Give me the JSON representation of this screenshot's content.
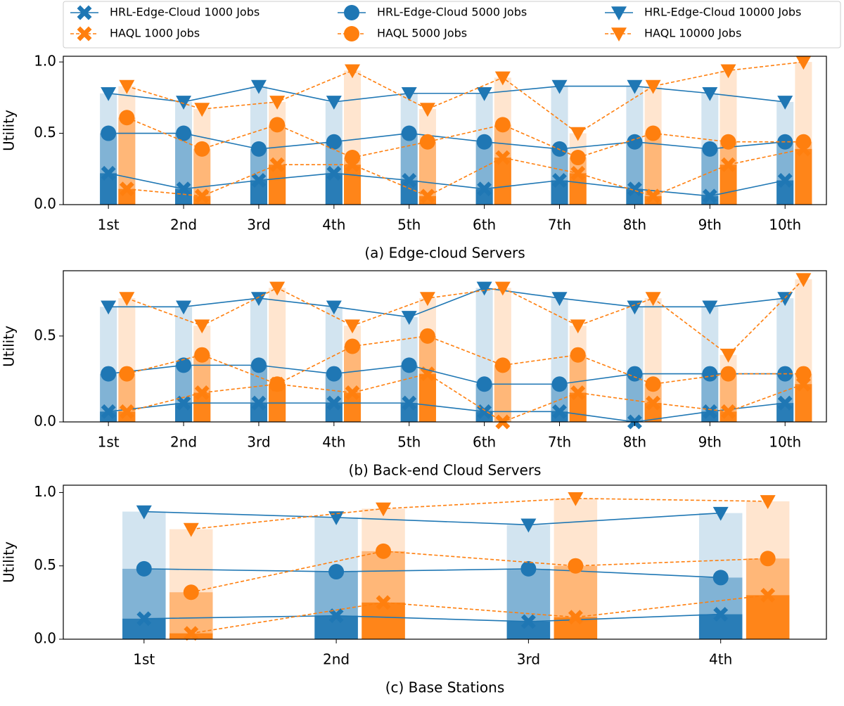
{
  "chart_data": [
    {
      "type": "bar-line",
      "xlabel": "(a) Edge-cloud Servers",
      "ylabel": "Utility",
      "categories": [
        "1st",
        "2nd",
        "3rd",
        "4th",
        "5th",
        "6th",
        "7th",
        "8th",
        "9th",
        "10th"
      ],
      "ylim": [
        0,
        1.04
      ],
      "yticks": [
        {
          "value": 0,
          "label": "0.0"
        },
        {
          "value": 0.5,
          "label": "0.5"
        },
        {
          "value": 1.0,
          "label": "1.0"
        }
      ],
      "series": [
        {
          "name": "HRL-Edge-Cloud 1000 Jobs",
          "color": "#1f77b4",
          "marker": "x",
          "dashed": false,
          "values": [
            0.22,
            0.11,
            0.17,
            0.22,
            0.17,
            0.11,
            0.17,
            0.11,
            0.06,
            0.17
          ]
        },
        {
          "name": "HAQL 1000 Jobs",
          "color": "#ff7f0e",
          "marker": "x",
          "dashed": true,
          "values": [
            0.11,
            0.06,
            0.28,
            0.28,
            0.06,
            0.33,
            0.22,
            0.06,
            0.28,
            0.39
          ]
        },
        {
          "name": "HRL-Edge-Cloud 5000 Jobs",
          "color": "#1f77b4",
          "marker": "o",
          "dashed": false,
          "values": [
            0.5,
            0.5,
            0.39,
            0.44,
            0.5,
            0.44,
            0.39,
            0.44,
            0.39,
            0.44
          ]
        },
        {
          "name": "HAQL 5000 Jobs",
          "color": "#ff7f0e",
          "marker": "o",
          "dashed": true,
          "values": [
            0.61,
            0.39,
            0.56,
            0.33,
            0.44,
            0.56,
            0.33,
            0.5,
            0.44,
            0.44
          ]
        },
        {
          "name": "HRL-Edge-Cloud 10000 Jobs",
          "color": "#1f77b4",
          "marker": "v",
          "dashed": false,
          "values": [
            0.78,
            0.72,
            0.83,
            0.72,
            0.78,
            0.78,
            0.83,
            0.83,
            0.78,
            0.72
          ]
        },
        {
          "name": "HAQL 10000 Jobs",
          "color": "#ff7f0e",
          "marker": "v",
          "dashed": true,
          "values": [
            0.83,
            0.67,
            0.72,
            0.94,
            0.67,
            0.89,
            0.5,
            0.83,
            0.94,
            1.0
          ]
        }
      ]
    },
    {
      "type": "bar-line",
      "xlabel": "(b) Back-end Cloud Servers",
      "ylabel": "Utility",
      "categories": [
        "1st",
        "2nd",
        "3rd",
        "4th",
        "5th",
        "6th",
        "7th",
        "8th",
        "9th",
        "10th"
      ],
      "ylim": [
        0,
        0.88
      ],
      "yticks": [
        {
          "value": 0,
          "label": "0.0"
        },
        {
          "value": 0.5,
          "label": "0.5"
        }
      ],
      "series": [
        {
          "color": "#1f77b4",
          "marker": "x",
          "dashed": false,
          "values": [
            0.06,
            0.11,
            0.11,
            0.11,
            0.11,
            0.06,
            0.06,
            0.0,
            0.06,
            0.11
          ]
        },
        {
          "color": "#ff7f0e",
          "marker": "x",
          "dashed": true,
          "values": [
            0.06,
            0.17,
            0.22,
            0.17,
            0.28,
            0.0,
            0.17,
            0.11,
            0.06,
            0.22
          ]
        },
        {
          "color": "#1f77b4",
          "marker": "o",
          "dashed": false,
          "values": [
            0.28,
            0.33,
            0.33,
            0.28,
            0.33,
            0.22,
            0.22,
            0.28,
            0.28,
            0.28
          ]
        },
        {
          "color": "#ff7f0e",
          "marker": "o",
          "dashed": true,
          "values": [
            0.28,
            0.39,
            0.22,
            0.44,
            0.5,
            0.33,
            0.39,
            0.22,
            0.28,
            0.28
          ]
        },
        {
          "color": "#1f77b4",
          "marker": "v",
          "dashed": false,
          "values": [
            0.67,
            0.67,
            0.72,
            0.67,
            0.61,
            0.78,
            0.72,
            0.67,
            0.67,
            0.72
          ]
        },
        {
          "color": "#ff7f0e",
          "marker": "v",
          "dashed": true,
          "values": [
            0.72,
            0.56,
            0.78,
            0.56,
            0.72,
            0.78,
            0.56,
            0.72,
            0.39,
            0.83
          ]
        }
      ]
    },
    {
      "type": "bar-line",
      "xlabel": "(c) Base Stations",
      "ylabel": "Utility",
      "categories": [
        "1st",
        "2nd",
        "3rd",
        "4th"
      ],
      "ylim": [
        0,
        1.05
      ],
      "yticks": [
        {
          "value": 0,
          "label": "0.0"
        },
        {
          "value": 0.5,
          "label": "0.5"
        },
        {
          "value": 1.0,
          "label": "1.0"
        }
      ],
      "series": [
        {
          "color": "#1f77b4",
          "marker": "x",
          "dashed": false,
          "values": [
            0.14,
            0.16,
            0.12,
            0.17
          ]
        },
        {
          "color": "#ff7f0e",
          "marker": "x",
          "dashed": true,
          "values": [
            0.04,
            0.25,
            0.15,
            0.3
          ]
        },
        {
          "color": "#1f77b4",
          "marker": "o",
          "dashed": false,
          "values": [
            0.48,
            0.46,
            0.48,
            0.42
          ]
        },
        {
          "color": "#ff7f0e",
          "marker": "o",
          "dashed": true,
          "values": [
            0.32,
            0.6,
            0.5,
            0.55
          ]
        },
        {
          "color": "#1f77b4",
          "marker": "v",
          "dashed": false,
          "values": [
            0.87,
            0.83,
            0.78,
            0.86
          ]
        },
        {
          "color": "#ff7f0e",
          "marker": "v",
          "dashed": true,
          "values": [
            0.75,
            0.89,
            0.96,
            0.94
          ]
        }
      ]
    }
  ]
}
